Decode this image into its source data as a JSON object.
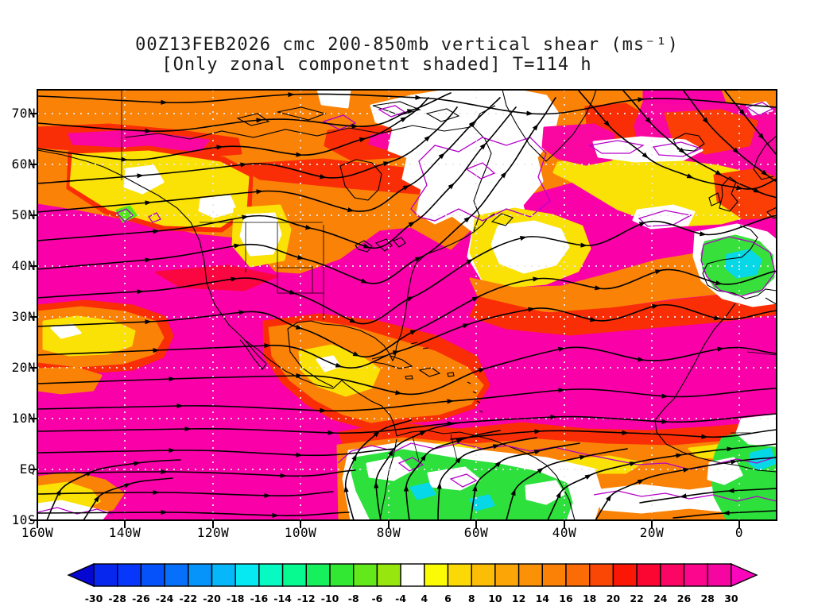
{
  "title": {
    "line1": "00Z13FEB2026 cmc 200-850mb vertical shear (ms⁻¹)",
    "line2": "[Only zonal componetnt shaded] T=114 h"
  },
  "axes": {
    "lat_labels": [
      "70N",
      "60N",
      "50N",
      "40N",
      "30N",
      "20N",
      "10N",
      "EQ",
      "10S"
    ],
    "lon_labels": [
      "160W",
      "140W",
      "120W",
      "100W",
      "80W",
      "60W",
      "40W",
      "20W",
      "0"
    ]
  },
  "colorbar": {
    "tick_labels": [
      "-30",
      "-28",
      "-26",
      "-24",
      "-22",
      "-20",
      "-18",
      "-16",
      "-14",
      "-12",
      "-10",
      "-8",
      "-6",
      "-4",
      "4",
      "6",
      "8",
      "10",
      "12",
      "14",
      "16",
      "18",
      "20",
      "22",
      "24",
      "26",
      "28",
      "30"
    ],
    "cell_colors": [
      "#0726ee",
      "#0637fa",
      "#0652fa",
      "#0670fa",
      "#0694fa",
      "#06b8fa",
      "#06e9f2",
      "#06fac2",
      "#06fa90",
      "#16f05c",
      "#33e833",
      "#63e81c",
      "#97e60d",
      "#ffffff",
      "#fbfb06",
      "#fbd906",
      "#fbbd06",
      "#fba506",
      "#fb9106",
      "#fb8106",
      "#fb6b06",
      "#fb4706",
      "#fb1706",
      "#fb0633",
      "#fb0665",
      "#fb068d",
      "#f606a1"
    ],
    "arrow_low_color": "#0707d2",
    "arrow_high_color": "#fb06bd"
  },
  "chart_data": {
    "type": "heatmap",
    "title": "00Z13FEB2026 cmc 200-850mb vertical shear (ms⁻¹)",
    "subtitle": "[Only zonal componetnt shaded] T=114 h",
    "model": "cmc",
    "init_time": "00Z13FEB2026",
    "forecast_hour": "T=114 h",
    "variable": "200-850mb vertical shear, zonal component shaded",
    "units": "ms⁻¹",
    "x_axis": {
      "label": "longitude",
      "ticks": [
        "160W",
        "140W",
        "120W",
        "100W",
        "80W",
        "60W",
        "40W",
        "20W",
        "0"
      ],
      "range": [
        "160W",
        "10E"
      ]
    },
    "y_axis": {
      "label": "latitude",
      "ticks": [
        "70N",
        "60N",
        "50N",
        "40N",
        "30N",
        "20N",
        "10N",
        "EQ",
        "10S"
      ],
      "range": [
        "75N",
        "10S"
      ]
    },
    "colorbar_levels": [
      -30,
      -28,
      -26,
      -24,
      -22,
      -20,
      -18,
      -16,
      -14,
      -12,
      -10,
      -8,
      -6,
      -4,
      4,
      6,
      8,
      10,
      12,
      14,
      16,
      18,
      20,
      22,
      24,
      26,
      28,
      30
    ],
    "colorbar_colors": [
      "#0726ee",
      "#0637fa",
      "#0652fa",
      "#0670fa",
      "#0694fa",
      "#06b8fa",
      "#06e9f2",
      "#06fac2",
      "#06fa90",
      "#16f05c",
      "#33e833",
      "#63e81c",
      "#97e60d",
      "#ffffff",
      "#fbfb06",
      "#fbd906",
      "#fbbd06",
      "#fba506",
      "#fb9106",
      "#fb8106",
      "#fb6b06",
      "#fb4706",
      "#fb1706",
      "#fb0633",
      "#fb0665",
      "#fb068d",
      "#f606a1"
    ],
    "legend_position": "bottom",
    "grid": "white dotted graticule every 10 deg latitude, 20 deg longitude",
    "overlays": [
      "black streamlines with arrowheads (mostly westerly flow)",
      "black coastlines and political borders",
      "purple contour lines around near-zero shear regions"
    ],
    "field_features": [
      "Very high shear (>28 ms⁻¹, magenta) over most of subtropical/tropical Pacific and Atlantic, eastern North America, and the Norwegian Sea",
      "Orange band (10-20 ms⁻¹) along the Arctic from Alaska across northern Canada and over the equatorial Atlantic / northern South America margin",
      "Near-zero shear (white, purple outline) over the Canadian Arctic archipelago, Davis Strait / Baffin region, a band south of Iceland, and SW of the British Isles",
      "Negative (easterly) shear: green/cyan over Iberia, over equatorial South America, and over equatorial Africa near the prime meridian",
      "Yellow/white local minima over the interior NW United States, coastal British Columbia, SE of Newfoundland, southern Mexico/Central America, and the central subtropical Pacific near 25N 150W",
      "Streamlines: zonal westerlies with a ridge turning flow northward over Davis Strait/Greenland, southeasterly descent over the NE Atlantic, a trough over the central United States with southwesterly flow along the east coast, cross-equatorial northward flow over South America, and weak easterlies south of the equator near Africa"
    ]
  }
}
